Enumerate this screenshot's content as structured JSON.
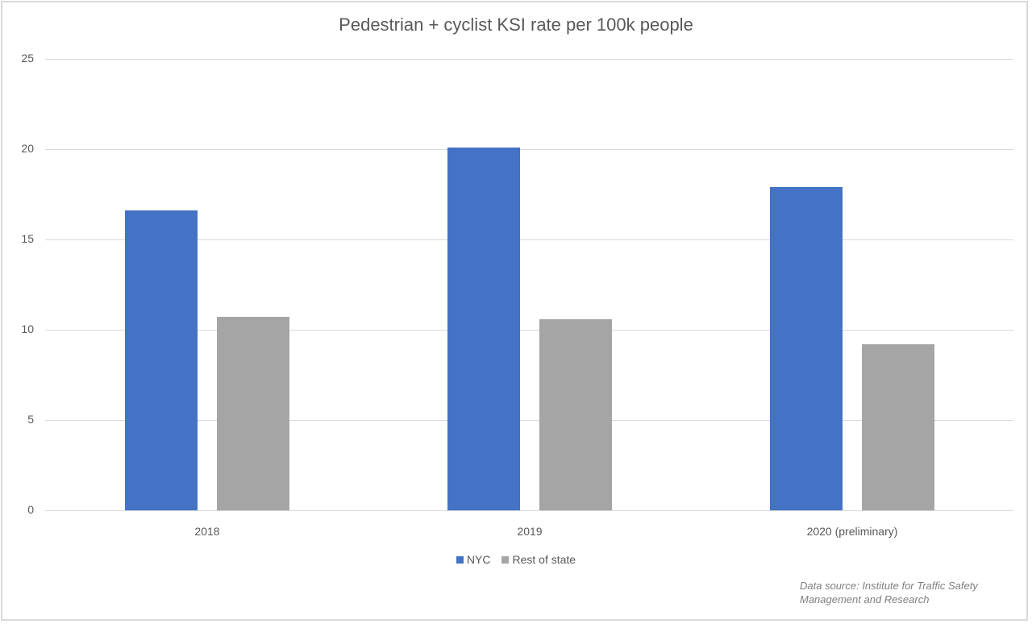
{
  "chart_data": {
    "type": "bar",
    "title": "Pedestrian + cyclist KSI rate per 100k people",
    "xlabel": "",
    "ylabel": "",
    "categories": [
      "2018",
      "2019",
      "2020 (preliminary)"
    ],
    "series": [
      {
        "name": "NYC",
        "color": "#4472c4",
        "values": [
          16.6,
          20.1,
          17.9
        ]
      },
      {
        "name": "Rest of state",
        "color": "#a5a5a5",
        "values": [
          10.7,
          10.6,
          9.2
        ]
      }
    ],
    "ylim": [
      0,
      25
    ],
    "yticks": [
      "0",
      "5",
      "10",
      "15",
      "20",
      "25"
    ],
    "grid": true,
    "legend_position": "bottom",
    "annotation": "Data source: Institute for Traffic Safety Management and Research"
  },
  "legend": [
    {
      "label": "NYC",
      "color": "#4472c4"
    },
    {
      "label": "Rest of state",
      "color": "#a5a5a5"
    }
  ],
  "source": {
    "line1": "Data source: Institute for Traffic Safety",
    "line2": "Management and Research"
  }
}
